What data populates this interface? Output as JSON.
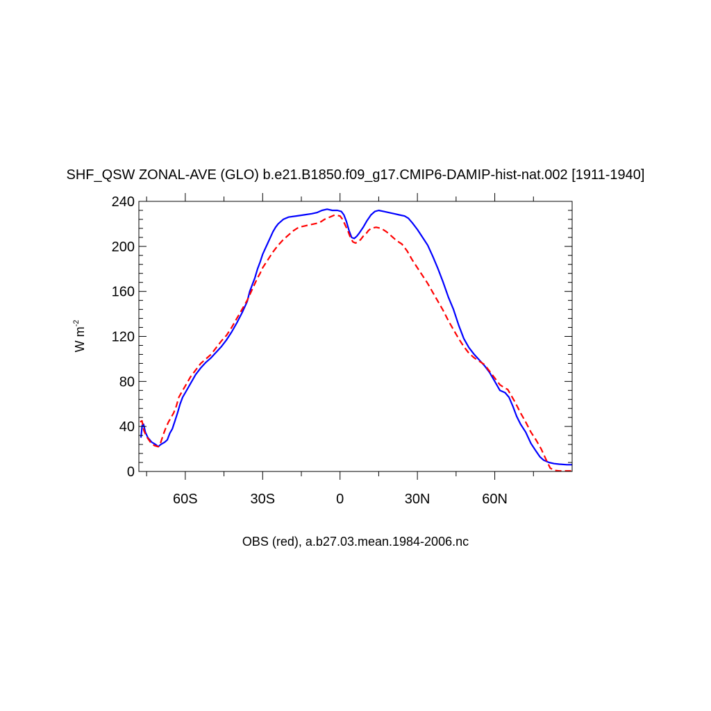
{
  "chart_data": {
    "type": "line",
    "title": "SHF_QSW ZONAL-AVE (GLO) b.e21.B1850.f09_g17.CMIP6-DAMIP-hist-nat.002 [1911-1940]",
    "xlabel": "OBS (red), a.b27.03.mean.1984-2006.nc",
    "ylabel": "W m",
    "ylabel_exponent": "-2",
    "xlim": [
      -78,
      90
    ],
    "ylim": [
      0,
      240
    ],
    "grid": false,
    "x_ticks": [
      {
        "value": -60,
        "label": "60S"
      },
      {
        "value": -30,
        "label": "30S"
      },
      {
        "value": 0,
        "label": "0"
      },
      {
        "value": 30,
        "label": "30N"
      },
      {
        "value": 60,
        "label": "60N"
      }
    ],
    "y_ticks": [
      {
        "value": 0,
        "label": "0"
      },
      {
        "value": 40,
        "label": "40"
      },
      {
        "value": 80,
        "label": "80"
      },
      {
        "value": 120,
        "label": "120"
      },
      {
        "value": 160,
        "label": "160"
      },
      {
        "value": 200,
        "label": "200"
      },
      {
        "value": 240,
        "label": "240"
      }
    ],
    "series": [
      {
        "color": "#0000ff",
        "dash": "solid",
        "points": [
          [
            -77.2,
            30
          ],
          [
            -76.7,
            41
          ],
          [
            -76.2,
            42
          ],
          [
            -75.5,
            35
          ],
          [
            -74.5,
            30
          ],
          [
            -73,
            26
          ],
          [
            -71.5,
            24
          ],
          [
            -70.5,
            22
          ],
          [
            -69.5,
            24
          ],
          [
            -68,
            26
          ],
          [
            -67,
            28
          ],
          [
            -66,
            34
          ],
          [
            -65,
            38
          ],
          [
            -64,
            45
          ],
          [
            -63,
            52
          ],
          [
            -62,
            60
          ],
          [
            -61,
            66
          ],
          [
            -60,
            70
          ],
          [
            -58,
            78
          ],
          [
            -56,
            86
          ],
          [
            -54,
            92
          ],
          [
            -52,
            97
          ],
          [
            -50,
            101
          ],
          [
            -48,
            106
          ],
          [
            -46,
            111
          ],
          [
            -44,
            117
          ],
          [
            -42,
            124
          ],
          [
            -40,
            132
          ],
          [
            -38,
            141
          ],
          [
            -36,
            151
          ],
          [
            -35,
            160
          ],
          [
            -34,
            166
          ],
          [
            -33,
            172
          ],
          [
            -32,
            180
          ],
          [
            -31,
            186
          ],
          [
            -30,
            193
          ],
          [
            -29,
            198
          ],
          [
            -28,
            203
          ],
          [
            -27,
            208
          ],
          [
            -26,
            213
          ],
          [
            -25,
            217
          ],
          [
            -24,
            220
          ],
          [
            -23,
            222
          ],
          [
            -22,
            224
          ],
          [
            -20,
            226
          ],
          [
            -17,
            227
          ],
          [
            -14,
            228
          ],
          [
            -11,
            229
          ],
          [
            -9,
            230
          ],
          [
            -7,
            232
          ],
          [
            -5,
            233
          ],
          [
            -3,
            232
          ],
          [
            -1,
            232
          ],
          [
            0.5,
            231
          ],
          [
            1.5,
            228
          ],
          [
            2.5,
            222
          ],
          [
            3.5,
            214
          ],
          [
            4.5,
            208
          ],
          [
            5.5,
            207
          ],
          [
            6.5,
            209
          ],
          [
            7.5,
            212
          ],
          [
            9,
            217
          ],
          [
            10.5,
            223
          ],
          [
            12,
            228
          ],
          [
            13.5,
            231
          ],
          [
            15,
            232
          ],
          [
            17,
            231
          ],
          [
            19,
            230
          ],
          [
            21,
            229
          ],
          [
            23,
            228
          ],
          [
            25,
            227
          ],
          [
            26.5,
            225
          ],
          [
            28,
            221
          ],
          [
            30,
            215
          ],
          [
            32,
            208
          ],
          [
            34,
            201
          ],
          [
            36,
            191
          ],
          [
            38,
            180
          ],
          [
            40,
            168
          ],
          [
            42,
            155
          ],
          [
            44,
            144
          ],
          [
            46,
            130
          ],
          [
            48,
            118
          ],
          [
            50,
            110
          ],
          [
            52,
            104
          ],
          [
            54,
            99
          ],
          [
            56,
            94
          ],
          [
            58,
            88
          ],
          [
            60,
            80
          ],
          [
            62,
            72
          ],
          [
            64,
            70
          ],
          [
            65.5,
            66
          ],
          [
            67,
            58
          ],
          [
            68.5,
            49
          ],
          [
            70,
            42
          ],
          [
            72,
            35
          ],
          [
            74,
            25
          ],
          [
            76,
            18
          ],
          [
            77.5,
            13
          ],
          [
            79,
            10
          ],
          [
            81,
            8
          ],
          [
            83,
            7
          ],
          [
            85,
            6.5
          ],
          [
            88,
            6
          ],
          [
            90,
            6
          ]
        ]
      },
      {
        "color": "#ff0000",
        "dash": "dashed",
        "points": [
          [
            -77.5,
            44
          ],
          [
            -76.8,
            45
          ],
          [
            -76,
            36
          ],
          [
            -75,
            31
          ],
          [
            -73.5,
            26
          ],
          [
            -72,
            23
          ],
          [
            -70.5,
            22
          ],
          [
            -69.5,
            26
          ],
          [
            -68.5,
            33
          ],
          [
            -67.5,
            39
          ],
          [
            -66.5,
            44
          ],
          [
            -65.5,
            48
          ],
          [
            -64.5,
            52
          ],
          [
            -63.5,
            58
          ],
          [
            -62.5,
            66
          ],
          [
            -61,
            72
          ],
          [
            -60,
            76
          ],
          [
            -58,
            84
          ],
          [
            -56,
            90
          ],
          [
            -54,
            96
          ],
          [
            -52,
            100
          ],
          [
            -50,
            104
          ],
          [
            -48,
            110
          ],
          [
            -46,
            116
          ],
          [
            -44,
            121
          ],
          [
            -42,
            128
          ],
          [
            -40,
            136
          ],
          [
            -38,
            144
          ],
          [
            -36,
            152
          ],
          [
            -34,
            162
          ],
          [
            -32,
            172
          ],
          [
            -31,
            176
          ],
          [
            -30,
            181
          ],
          [
            -28,
            188
          ],
          [
            -26,
            195
          ],
          [
            -24,
            201
          ],
          [
            -22,
            206
          ],
          [
            -20,
            210
          ],
          [
            -18,
            214
          ],
          [
            -16,
            217
          ],
          [
            -14,
            218
          ],
          [
            -12,
            219
          ],
          [
            -10,
            220
          ],
          [
            -8,
            221
          ],
          [
            -6,
            224
          ],
          [
            -4,
            226
          ],
          [
            -2,
            228
          ],
          [
            0,
            227
          ],
          [
            1,
            224
          ],
          [
            2,
            219
          ],
          [
            3,
            214
          ],
          [
            4,
            208
          ],
          [
            5,
            204
          ],
          [
            6,
            203
          ],
          [
            7,
            204
          ],
          [
            8,
            206
          ],
          [
            9,
            209
          ],
          [
            10,
            211
          ],
          [
            11,
            214
          ],
          [
            12,
            216
          ],
          [
            14,
            217
          ],
          [
            16,
            216
          ],
          [
            18,
            213
          ],
          [
            20,
            209
          ],
          [
            22,
            205
          ],
          [
            24,
            202
          ],
          [
            26,
            196
          ],
          [
            28,
            188
          ],
          [
            30,
            181
          ],
          [
            32,
            174
          ],
          [
            34,
            167
          ],
          [
            36,
            159
          ],
          [
            38,
            151
          ],
          [
            40,
            143
          ],
          [
            42,
            134
          ],
          [
            44,
            126
          ],
          [
            46,
            118
          ],
          [
            48,
            111
          ],
          [
            50,
            105
          ],
          [
            52,
            101
          ],
          [
            54,
            98
          ],
          [
            56,
            95
          ],
          [
            58,
            89
          ],
          [
            60,
            83
          ],
          [
            62,
            77
          ],
          [
            64,
            74
          ],
          [
            65,
            73
          ],
          [
            66,
            69
          ],
          [
            68,
            61
          ],
          [
            70,
            52
          ],
          [
            72,
            44
          ],
          [
            74,
            35
          ],
          [
            76,
            28
          ],
          [
            78,
            20
          ],
          [
            80,
            10
          ],
          [
            81.5,
            3
          ],
          [
            83,
            1
          ],
          [
            85,
            0.5
          ],
          [
            88,
            0.5
          ],
          [
            90,
            0.5
          ]
        ]
      }
    ]
  }
}
